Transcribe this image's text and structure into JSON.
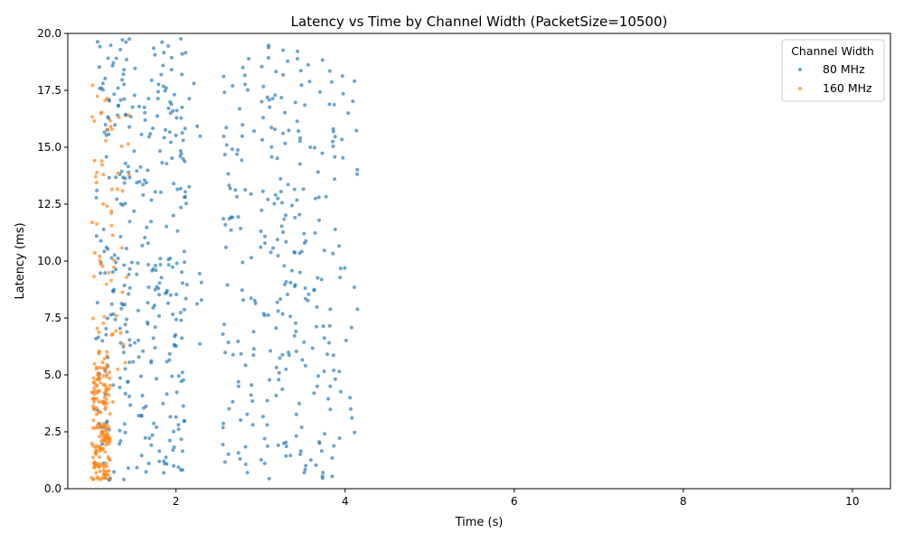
{
  "chart_data": {
    "type": "scatter",
    "title": "Latency vs Time by Channel Width (PacketSize=10500)",
    "xlabel": "Time (s)",
    "ylabel": "Latency (ms)",
    "xlim": [
      0.72,
      10.45
    ],
    "ylim": [
      0,
      20
    ],
    "xticks": [
      2,
      4,
      6,
      8,
      10
    ],
    "xtick_labels": [
      "2",
      "4",
      "6",
      "8",
      "10"
    ],
    "yticks": [
      0,
      2.5,
      5,
      7.5,
      10,
      12.5,
      15,
      17.5,
      20
    ],
    "ytick_labels": [
      "0.0",
      "2.5",
      "5.0",
      "7.5",
      "10.0",
      "12.5",
      "15.0",
      "17.5",
      "20.0"
    ],
    "grid": false,
    "legend": {
      "title": "Channel Width",
      "placement": "top-right"
    },
    "series": [
      {
        "name": "80 MHz",
        "color": "#1f77b4",
        "opacity": 0.65,
        "clusters": [
          {
            "x_range": [
              1.05,
              1.55
            ],
            "count": 160,
            "y_range": [
              0.3,
              19.8
            ]
          },
          {
            "x_range": [
              1.55,
              2.12
            ],
            "count": 190,
            "y_range": [
              0.6,
              19.8
            ]
          },
          {
            "x_range": [
              2.12,
              2.45
            ],
            "count": 12,
            "y_range": [
              5.8,
              20.0
            ]
          },
          {
            "x_range": [
              2.55,
              2.95
            ],
            "count": 75,
            "y_range": [
              0.7,
              19.7
            ]
          },
          {
            "x_range": [
              3.0,
              3.45
            ],
            "count": 110,
            "y_range": [
              0.4,
              20.0
            ]
          },
          {
            "x_range": [
              3.45,
              3.9
            ],
            "count": 90,
            "y_range": [
              0.4,
              19.4
            ]
          },
          {
            "x_range": [
              3.9,
              4.15
            ],
            "count": 25,
            "y_range": [
              1.7,
              18.2
            ]
          }
        ],
        "points": []
      },
      {
        "name": "160 MHz",
        "color": "#ff7f0e",
        "opacity": 0.65,
        "clusters": [
          {
            "x_range": [
              1.0,
              1.22
            ],
            "count": 170,
            "y_range": [
              0.4,
              5.5
            ]
          },
          {
            "x_range": [
              1.0,
              1.25
            ],
            "count": 50,
            "y_range": [
              5.5,
              17.9
            ]
          },
          {
            "x_range": [
              1.25,
              1.45
            ],
            "count": 22,
            "y_range": [
              2.5,
              17.2
            ]
          }
        ],
        "points": []
      }
    ]
  }
}
